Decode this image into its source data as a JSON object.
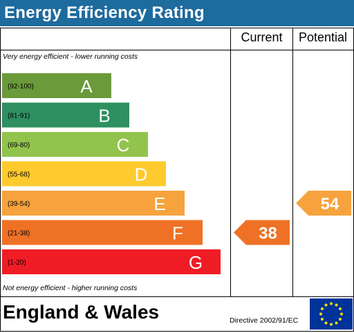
{
  "header": {
    "title": "Energy Efficiency Rating"
  },
  "columns": {
    "current": "Current",
    "potential": "Potential"
  },
  "notes": {
    "top": "Very energy efficient - lower running costs",
    "bottom": "Not energy efficient - higher running costs"
  },
  "footer": {
    "region": "England & Wales",
    "directive": "Directive 2002/91/EC",
    "flag_icon": "eu-flag-icon"
  },
  "chart_data": {
    "type": "bar",
    "categories": [
      "A",
      "B",
      "C",
      "D",
      "E",
      "F",
      "G"
    ],
    "ranges": [
      "(92-100)",
      "(81-91)",
      "(69-80)",
      "(55-68)",
      "(39-54)",
      "(21-38)",
      "(1-20)"
    ],
    "colors": [
      "#6b9a3a",
      "#2e9061",
      "#92c44d",
      "#ffca2d",
      "#f6a33d",
      "#ef7126",
      "#ef1c26"
    ],
    "current": {
      "value": 38,
      "band": "F",
      "color": "#ef7126"
    },
    "potential": {
      "value": 54,
      "band": "E",
      "color": "#f6a33d"
    }
  }
}
